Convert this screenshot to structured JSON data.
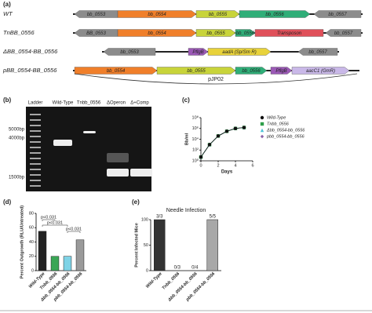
{
  "diagram": {
    "label": "(a)",
    "rows": [
      {
        "name": "WT",
        "genes": [
          "bb_0553",
          "bb_0554",
          "bb_0555",
          "bb_0556",
          "bb_0557"
        ]
      },
      {
        "name": "TnBB_0556",
        "genes": [
          "BB_0553",
          "bb_0554",
          "bb_0555",
          "bb_0556",
          "Transposon",
          "bb_0557"
        ]
      },
      {
        "name": "ΔBB_0554-BB_0556",
        "genes": [
          "bb_0553",
          "PflgB",
          "aadA (Sp/Sm R)",
          "bb_0557"
        ]
      },
      {
        "name": "pBB_0554-BB_0556",
        "genes": [
          "bb_0554",
          "bb_0555",
          "bb_0556",
          "PflgB",
          "aacC1 (GmR)"
        ]
      }
    ],
    "plasmid": "pJP02"
  },
  "gel": {
    "label": "(b)",
    "lanes": [
      "Ladder",
      "Wild-Type",
      "Tnbb_0556",
      "ΔOperon",
      "Δ+Comp"
    ],
    "markers": [
      "5000bp",
      "4000bp",
      "1500bp"
    ]
  },
  "chart_data": [
    {
      "type": "line",
      "label": "(c)",
      "y_label": "Bb/ml",
      "x_label": "Days",
      "log_y": true,
      "x": [
        0,
        1,
        2,
        3,
        4,
        5
      ],
      "series": [
        {
          "name": "Wild-Type",
          "color": "#111111",
          "values": [
            5,
            1000,
            40000,
            300000,
            1000000,
            1500000
          ]
        },
        {
          "name": "Tnbb_0556",
          "color": "#2e9e4a",
          "values": [
            5,
            1000,
            40000,
            300000,
            1000000,
            1500000
          ]
        },
        {
          "name": "Δbb_0554-bb_0556",
          "color": "#4cc3d9",
          "values": [
            5,
            1000,
            40000,
            300000,
            1000000,
            1500000
          ]
        },
        {
          "name": "pbb_0554-bb_0556",
          "color": "#8a63a8",
          "values": [
            5,
            1000,
            40000,
            300000,
            1000000,
            1500000
          ]
        }
      ],
      "xlim": [
        0,
        6
      ],
      "xticks": [
        0,
        2,
        4,
        6
      ],
      "ylim": [
        1,
        100000000
      ],
      "yticks": [
        {
          "value": 1,
          "label": "10⁰"
        },
        {
          "value": 100,
          "label": "10²"
        },
        {
          "value": 10000,
          "label": "10⁴"
        },
        {
          "value": 1000000,
          "label": "10⁶"
        },
        {
          "value": 100000000,
          "label": "10⁸"
        }
      ]
    },
    {
      "type": "bar",
      "label": "(d)",
      "y_label": "Percent Outgrowth (RLU/Untreated)",
      "categories": [
        "Wild-Type",
        "Tnbb_0556",
        "Δbb_0554-bb_0556",
        "pbb_0554-bb_0556"
      ],
      "values": [
        55,
        20,
        20,
        43
      ],
      "colors": [
        "#222222",
        "#3aa655",
        "#7fd3e6",
        "#9a9a9a"
      ],
      "annotations": [
        "p<0.031",
        "p<0.031",
        "p<0.031"
      ],
      "ylim": [
        0,
        80
      ],
      "yticks": [
        0,
        20,
        40,
        60,
        80
      ]
    },
    {
      "type": "bar",
      "label": "(e)",
      "title": "Needle Infection",
      "y_label": "Percent Infected Mice",
      "categories": [
        "Wild-Type",
        "Tnbb_0556",
        "Δbb_0554-bb_0556",
        "pbb_0554-bb_0556"
      ],
      "values": [
        100,
        0,
        0,
        100
      ],
      "value_labels": [
        "3/3",
        "0/3",
        "0/4",
        "5/5"
      ],
      "colors": [
        "#333333",
        "#3aa655",
        "#7fd3e6",
        "#a8a8a8"
      ],
      "ylim": [
        0,
        100
      ],
      "yticks": [
        0,
        50,
        100
      ]
    }
  ]
}
